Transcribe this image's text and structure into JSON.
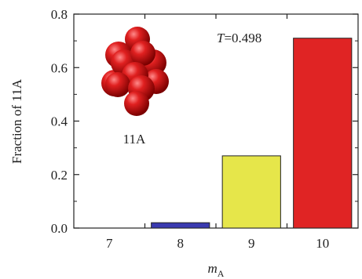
{
  "chart_data": {
    "type": "bar",
    "categories": [
      "7",
      "8",
      "9",
      "10"
    ],
    "values": [
      0.0,
      0.02,
      0.27,
      0.71
    ],
    "colors": [
      "#3a3ab0",
      "#3a3ab0",
      "#e6e64a",
      "#e02424"
    ],
    "title": "",
    "xlabel": "m",
    "xlabel_subscript": "A",
    "ylabel": "Fraction of 11A",
    "ylim": [
      0,
      0.8
    ],
    "yticks": [
      "0.0",
      "0.2",
      "0.4",
      "0.6",
      "0.8"
    ],
    "ytick_values": [
      0.0,
      0.2,
      0.4,
      0.6,
      0.8
    ],
    "annotation_T_symbol": "T",
    "annotation_T_value": "=0.498",
    "cluster_label": "11A",
    "grid": false,
    "cluster_icon": "red-sphere-cluster"
  }
}
